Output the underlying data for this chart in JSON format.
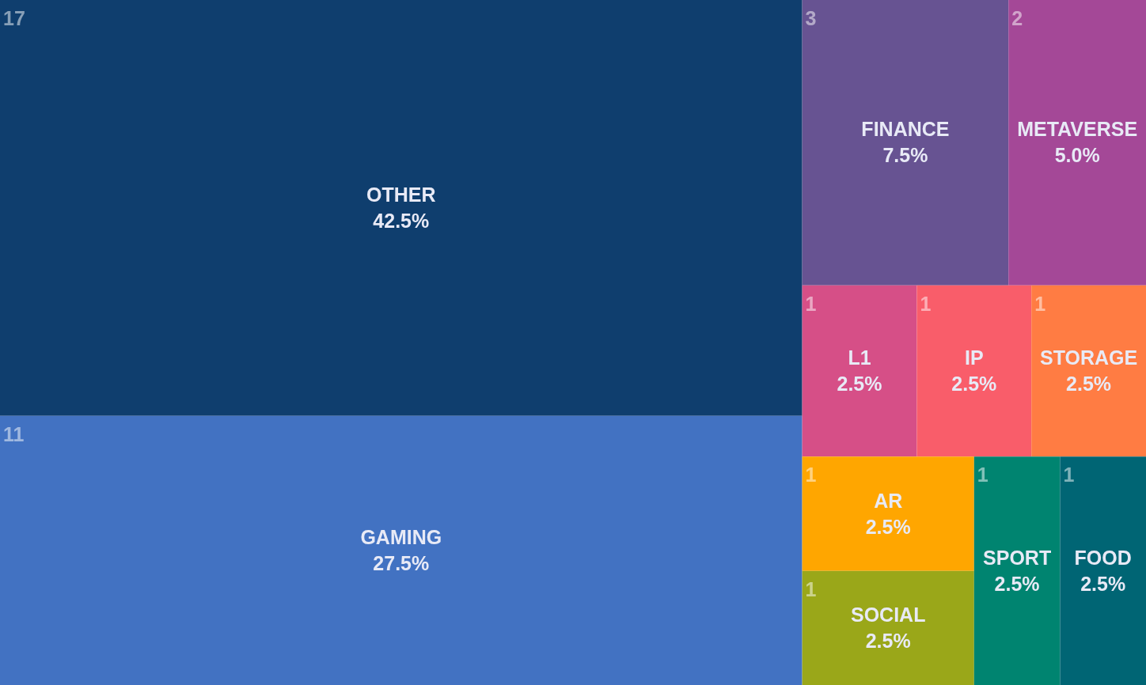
{
  "chart_data": {
    "type": "other",
    "categories": [
      "OTHER",
      "GAMING",
      "FINANCE",
      "METAVERSE",
      "L1",
      "IP",
      "STORAGE",
      "AR",
      "SOCIAL",
      "SPORT",
      "FOOD"
    ],
    "values": [
      42.5,
      27.5,
      7.5,
      5.0,
      2.5,
      2.5,
      2.5,
      2.5,
      2.5,
      2.5,
      2.5
    ],
    "annotations": [
      "17",
      "11",
      "3",
      "2",
      "1",
      "1",
      "1",
      "1",
      "1",
      "1",
      "1"
    ],
    "value_labels": [
      "42.5%",
      "27.5%",
      "7.5%",
      "5.0%",
      "2.5%",
      "2.5%",
      "2.5%",
      "2.5%",
      "2.5%",
      "2.5%",
      "2.5%"
    ],
    "colors": [
      "#0f3e6e",
      "#4272c2",
      "#675392",
      "#a44897",
      "#d64f87",
      "#f95d6a",
      "#ff7c43",
      "#ffa600",
      "#9aa719",
      "#008470",
      "#006574"
    ]
  }
}
